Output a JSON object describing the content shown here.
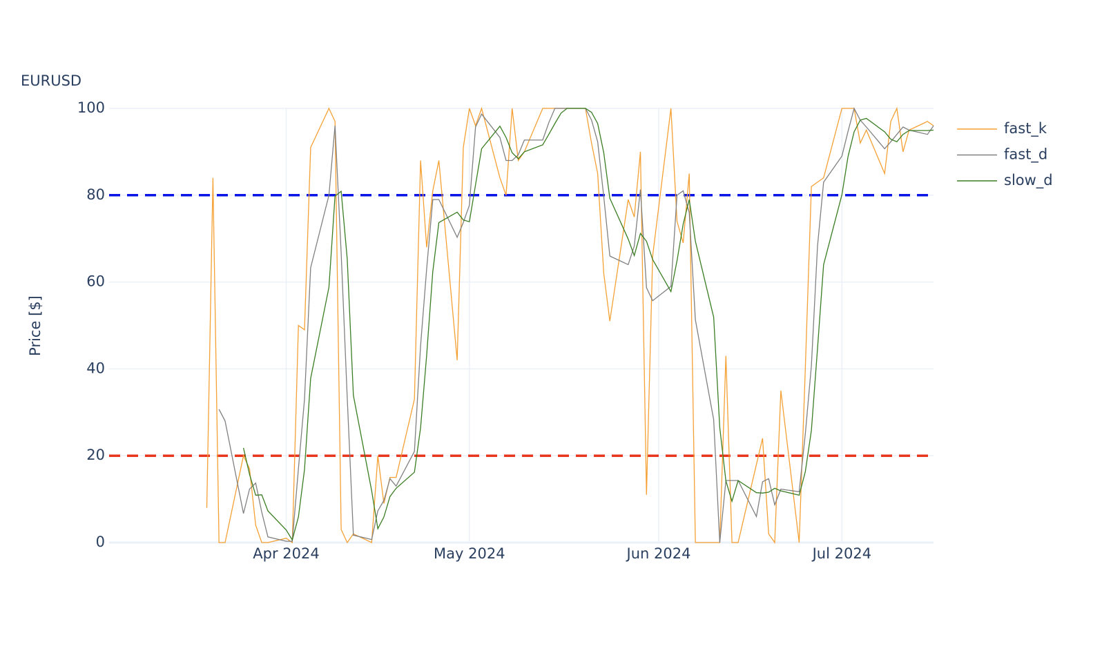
{
  "chart_data": {
    "type": "line",
    "title": "EURUSD",
    "y_label": "Price [$]",
    "x": [
      "2024-03-19",
      "2024-03-20",
      "2024-03-21",
      "2024-03-22",
      "2024-03-25",
      "2024-03-26",
      "2024-03-27",
      "2024-03-28",
      "2024-03-29",
      "2024-04-01",
      "2024-04-02",
      "2024-04-03",
      "2024-04-04",
      "2024-04-05",
      "2024-04-08",
      "2024-04-09",
      "2024-04-10",
      "2024-04-11",
      "2024-04-12",
      "2024-04-15",
      "2024-04-16",
      "2024-04-17",
      "2024-04-18",
      "2024-04-19",
      "2024-04-22",
      "2024-04-23",
      "2024-04-24",
      "2024-04-25",
      "2024-04-26",
      "2024-04-29",
      "2024-04-30",
      "2024-05-01",
      "2024-05-02",
      "2024-05-03",
      "2024-05-06",
      "2024-05-07",
      "2024-05-08",
      "2024-05-09",
      "2024-05-10",
      "2024-05-13",
      "2024-05-14",
      "2024-05-15",
      "2024-05-16",
      "2024-05-17",
      "2024-05-20",
      "2024-05-21",
      "2024-05-22",
      "2024-05-23",
      "2024-05-24",
      "2024-05-27",
      "2024-05-28",
      "2024-05-29",
      "2024-05-30",
      "2024-05-31",
      "2024-06-03",
      "2024-06-04",
      "2024-06-05",
      "2024-06-06",
      "2024-06-07",
      "2024-06-10",
      "2024-06-11",
      "2024-06-12",
      "2024-06-13",
      "2024-06-14",
      "2024-06-17",
      "2024-06-18",
      "2024-06-19",
      "2024-06-20",
      "2024-06-21",
      "2024-06-24",
      "2024-06-25",
      "2024-06-26",
      "2024-06-27",
      "2024-06-28",
      "2024-07-01",
      "2024-07-02",
      "2024-07-03",
      "2024-07-04",
      "2024-07-05",
      "2024-07-08",
      "2024-07-09",
      "2024-07-10",
      "2024-07-11",
      "2024-07-12",
      "2024-07-15",
      "2024-07-16"
    ],
    "series": [
      {
        "name": "fast_k",
        "color": "#f5a033",
        "values": [
          8,
          84,
          0,
          0,
          20,
          17,
          4,
          0,
          0,
          1,
          0,
          50,
          49,
          91,
          100,
          97,
          3,
          0,
          2,
          0,
          20,
          9,
          15,
          15,
          33,
          88,
          68,
          81,
          88,
          42,
          91,
          100,
          96,
          100,
          84,
          80,
          100,
          88,
          90,
          100,
          100,
          100,
          100,
          100,
          100,
          92,
          85,
          62,
          51,
          79,
          75,
          90,
          11,
          66,
          100,
          74,
          69,
          85,
          0,
          0,
          0,
          43,
          0,
          0,
          18,
          24,
          2,
          0,
          35,
          0,
          40,
          82,
          83,
          84,
          100,
          100,
          100,
          92,
          95,
          85,
          97,
          100,
          90,
          95,
          97,
          96
        ]
      },
      {
        "name": "fast_d",
        "color": "#808080",
        "values": [
          null,
          null,
          30.7,
          28,
          6.7,
          12.3,
          13.7,
          7,
          1.3,
          0.3,
          0.3,
          17,
          33,
          63.3,
          80,
          96,
          66.7,
          33.3,
          1.7,
          0.7,
          7.3,
          9.7,
          14.7,
          13,
          21,
          45.3,
          63,
          79,
          79,
          70.3,
          73.7,
          77.7,
          95.7,
          98.7,
          93.3,
          88,
          88,
          89.3,
          92.7,
          92.7,
          96.7,
          100,
          100,
          100,
          100,
          97.3,
          92.3,
          79.7,
          66,
          64,
          68.3,
          81.3,
          58.7,
          55.7,
          59,
          80,
          81,
          76,
          51.3,
          28.3,
          0,
          14.3,
          14.3,
          14.3,
          6,
          14,
          14.7,
          8.7,
          12.3,
          11.7,
          25,
          40.7,
          68.3,
          83,
          89,
          94.7,
          100,
          97.3,
          95.7,
          90.7,
          92.3,
          94,
          95.7,
          95,
          94,
          96
        ]
      },
      {
        "name": "slow_d",
        "color": "#3a7d22",
        "values": [
          null,
          null,
          null,
          null,
          21.8,
          15.7,
          10.9,
          11,
          7.3,
          2.9,
          0.6,
          5.9,
          16.8,
          37.8,
          58.8,
          79.8,
          80.9,
          65.3,
          33.9,
          11.9,
          3.2,
          5.9,
          10.6,
          12.5,
          16.2,
          26.4,
          43.1,
          62.4,
          73.7,
          76.1,
          74.3,
          73.9,
          82.4,
          90.7,
          95.9,
          93.3,
          89.8,
          88.4,
          90,
          91.6,
          94,
          96.5,
          98.9,
          100,
          100,
          99.1,
          96.5,
          89.8,
          79.3,
          69.9,
          66.1,
          71.2,
          69.4,
          65.2,
          57.8,
          64.9,
          73.3,
          79,
          69.4,
          51.9,
          26.5,
          14.2,
          9.5,
          14.3,
          11.5,
          11.4,
          11.6,
          12.5,
          11.9,
          10.9,
          16.3,
          25.8,
          44.7,
          64,
          80.1,
          88.9,
          94.6,
          97.3,
          97.7,
          94.6,
          92.9,
          92.3,
          94,
          94.9,
          94.9,
          95
        ]
      }
    ],
    "hlines": [
      {
        "value": 80,
        "color": "#0a14e6"
      },
      {
        "value": 20,
        "color": "#e8351e"
      }
    ],
    "xlim": [
      "2024-03-03",
      "2024-07-16"
    ],
    "xticks": [
      {
        "value": "2024-04-01",
        "label": "Apr 2024"
      },
      {
        "value": "2024-05-01",
        "label": "May 2024"
      },
      {
        "value": "2024-06-01",
        "label": "Jun 2024"
      },
      {
        "value": "2024-07-01",
        "label": "Jul 2024"
      }
    ],
    "ylim": [
      0,
      100
    ],
    "yticks": [
      0,
      20,
      40,
      60,
      80,
      100
    ],
    "grid": true,
    "legend": "right"
  }
}
